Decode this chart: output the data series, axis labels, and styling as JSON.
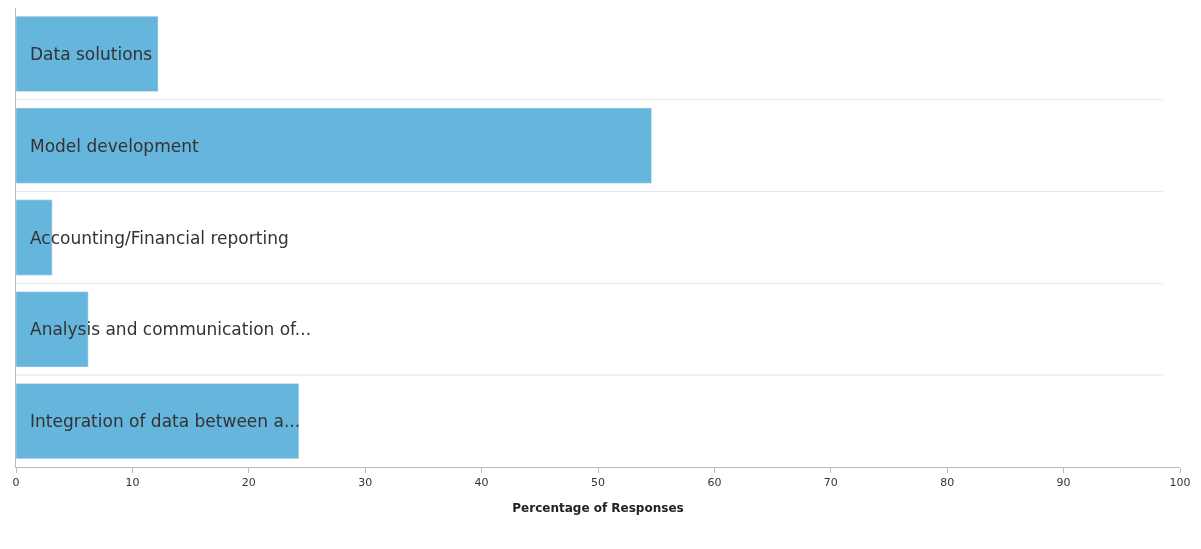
{
  "chart_data": {
    "type": "bar",
    "orientation": "horizontal",
    "xlabel": "Percentage of Responses",
    "categories": [
      "Data solutions",
      "Model development",
      "Accounting/Financial reporting",
      "Analysis and communication of...",
      "Integration of data between a..."
    ],
    "values": [
      12.2,
      54.6,
      3.1,
      6.2,
      24.3
    ],
    "color": "#65b5dd",
    "xlim": [
      0,
      100
    ],
    "xticks": [
      0,
      10,
      20,
      30,
      40,
      50,
      60,
      70,
      80,
      90,
      100
    ],
    "grid": "y"
  }
}
